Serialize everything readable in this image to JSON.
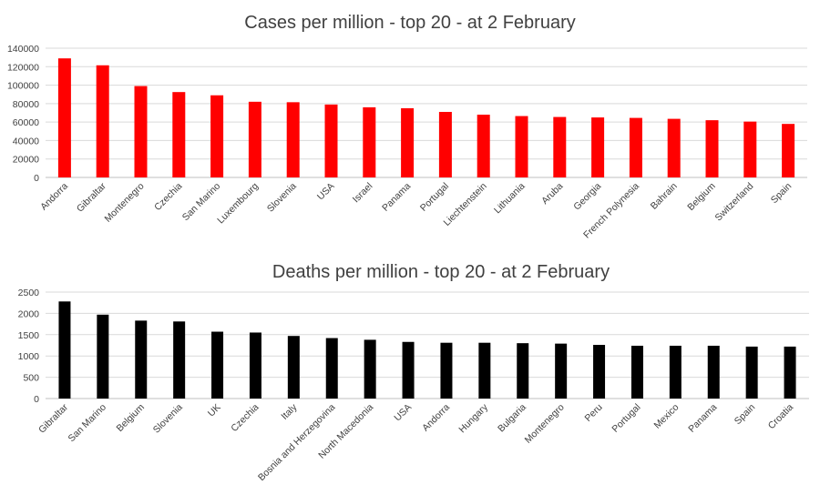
{
  "chart_data": [
    {
      "type": "bar",
      "title": "Cases per million - top 20 - at 2 February",
      "xlabel": "",
      "ylabel": "",
      "ylim": [
        0,
        140000
      ],
      "yticks": [
        0,
        20000,
        40000,
        60000,
        80000,
        100000,
        120000,
        140000
      ],
      "color": "#ff0000",
      "categories": [
        "Andorra",
        "Gibraltar",
        "Montenegro",
        "Czechia",
        "San Marino",
        "Luxembourg",
        "Slovenia",
        "USA",
        "Israel",
        "Panama",
        "Portugal",
        "Liechtenstein",
        "Lithuania",
        "Aruba",
        "Georgia",
        "French Polynesia",
        "Bahrain",
        "Belgium",
        "Switzerland",
        "Spain"
      ],
      "values": [
        129000,
        121500,
        99000,
        92500,
        89000,
        82000,
        81500,
        79000,
        76000,
        75000,
        71000,
        68000,
        66500,
        65500,
        65000,
        64500,
        63500,
        62000,
        60500,
        58000
      ]
    },
    {
      "type": "bar",
      "title": "Deaths per million - top 20 - at 2 February",
      "xlabel": "",
      "ylabel": "",
      "ylim": [
        0,
        2500
      ],
      "yticks": [
        0,
        500,
        1000,
        1500,
        2000,
        2500
      ],
      "color": "#000000",
      "categories": [
        "Gibraltar",
        "San Marino",
        "Belgium",
        "Slovenia",
        "UK",
        "Czechia",
        "Italy",
        "Bosnia and Herzegovina",
        "North Macedonia",
        "USA",
        "Andorra",
        "Hungary",
        "Bulgaria",
        "Montenegro",
        "Peru",
        "Portugal",
        "Mexico",
        "Panama",
        "Spain",
        "Croatia"
      ],
      "values": [
        2280,
        1970,
        1830,
        1810,
        1570,
        1550,
        1470,
        1420,
        1380,
        1330,
        1310,
        1310,
        1300,
        1290,
        1260,
        1240,
        1240,
        1240,
        1220,
        1220
      ]
    }
  ]
}
